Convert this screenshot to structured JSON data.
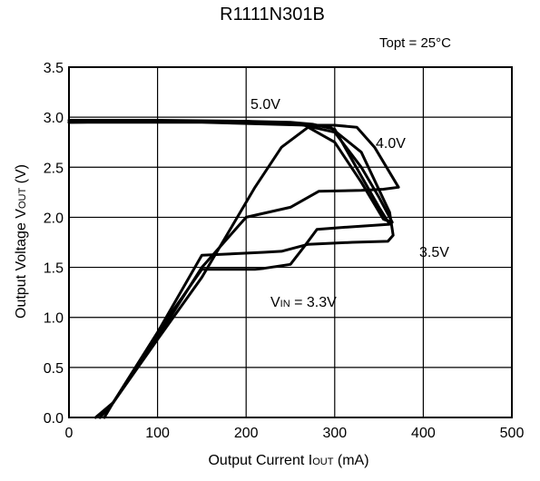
{
  "chart_data": {
    "type": "line",
    "title": "R1111N301B",
    "condition": "Topt = 25°C",
    "xlabel": "Output Current IOUT (mA)",
    "ylabel": "Output Voltage VOUT (V)",
    "xlim": [
      0,
      500
    ],
    "ylim": [
      0,
      3.5
    ],
    "xticks": [
      "0",
      "100",
      "200",
      "300",
      "400",
      "500"
    ],
    "yticks": [
      "0.0",
      "0.5",
      "1.0",
      "1.5",
      "2.0",
      "2.5",
      "3.0",
      "3.5"
    ],
    "grid": true,
    "series": [
      {
        "name": "5.0V",
        "x": [
          0,
          100,
          200,
          260,
          300,
          330,
          350,
          365,
          355,
          330,
          300,
          270,
          240,
          210,
          180,
          150,
          100,
          50,
          30
        ],
        "y": [
          2.97,
          2.97,
          2.96,
          2.93,
          2.85,
          2.5,
          2.2,
          1.95,
          1.98,
          2.35,
          2.75,
          2.9,
          2.7,
          2.3,
          1.85,
          1.4,
          0.78,
          0.15,
          0.0
        ]
      },
      {
        "name": "4.0V",
        "x": [
          0,
          150,
          270,
          300,
          325,
          345,
          372,
          355,
          330,
          282,
          250,
          200,
          150,
          100,
          50,
          35
        ],
        "y": [
          2.95,
          2.95,
          2.92,
          2.92,
          2.9,
          2.7,
          2.3,
          2.28,
          2.27,
          2.26,
          2.1,
          2.0,
          1.5,
          0.8,
          0.15,
          0.0
        ]
      },
      {
        "name": "3.5V",
        "x": [
          0,
          100,
          200,
          265,
          295,
          330,
          362,
          366,
          360,
          320,
          270,
          240,
          220,
          150,
          100,
          50,
          35
        ],
        "y": [
          2.95,
          2.96,
          2.95,
          2.93,
          2.9,
          2.65,
          2.05,
          1.82,
          1.76,
          1.75,
          1.73,
          1.66,
          1.65,
          1.62,
          0.85,
          0.15,
          0.0
        ]
      },
      {
        "name": "VIN = 3.3V",
        "label_parts": [
          "V",
          "IN",
          " = 3.3V"
        ],
        "x": [
          0,
          100,
          200,
          250,
          275,
          300,
          350,
          362,
          310,
          280,
          265,
          250,
          220,
          210,
          150,
          100,
          50,
          40
        ],
        "y": [
          2.95,
          2.96,
          2.96,
          2.95,
          2.93,
          2.88,
          2.1,
          1.93,
          1.9,
          1.88,
          1.7,
          1.53,
          1.49,
          1.48,
          1.48,
          0.85,
          0.15,
          0.0
        ]
      }
    ]
  }
}
